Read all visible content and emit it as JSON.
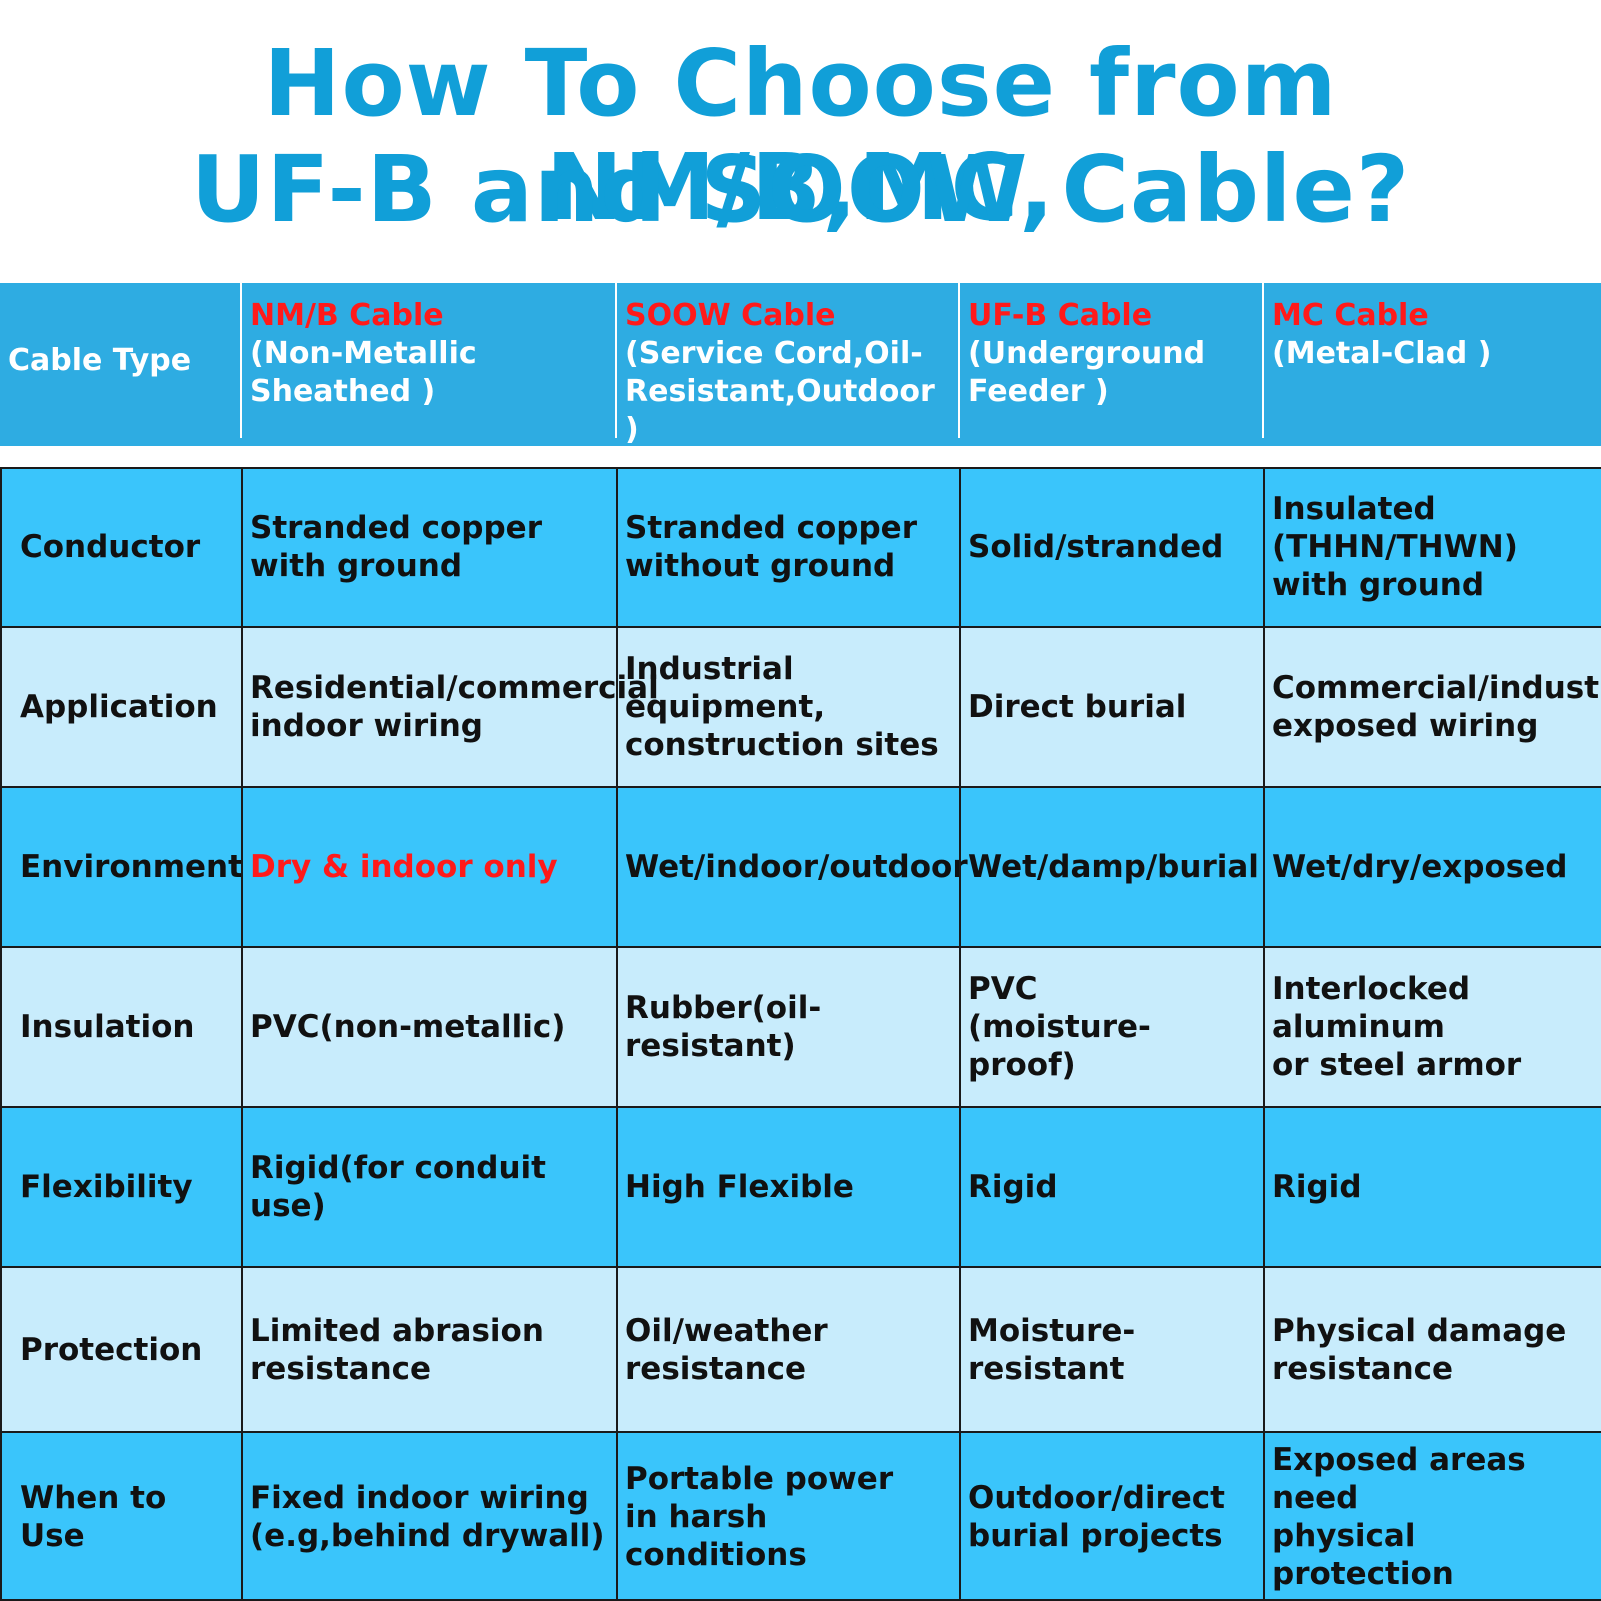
{
  "title": {
    "line1": "How To Choose from NM/B,MC,",
    "line2": "UF-B and SOOW Cable?"
  },
  "header": {
    "label": "Cable Type",
    "columns": [
      {
        "name": "NM/B Cable",
        "desc": "(Non-Metallic\nSheathed )"
      },
      {
        "name": "SOOW Cable",
        "desc": "(Service Cord,Oil-\nResistant,Outdoor )"
      },
      {
        "name": "UF-B Cable",
        "desc": "(Underground\nFeeder )"
      },
      {
        "name": "MC Cable",
        "desc": "(Metal-Clad )"
      }
    ]
  },
  "rows": [
    {
      "label": "Conductor",
      "cells": [
        "Stranded copper\nwith ground",
        "Stranded copper\nwithout ground",
        "Solid/stranded",
        "Insulated\n(THHN/THWN)\nwith ground"
      ]
    },
    {
      "label": "Application",
      "cells": [
        "Residential/commercial\nindoor wiring",
        "Industrial equipment,\nconstruction sites",
        "Direct burial",
        "Commercial/industrial\nexposed wiring"
      ]
    },
    {
      "label": "Environment",
      "cells": [
        "Dry & indoor only",
        "Wet/indoor/outdoor",
        "Wet/damp/burial",
        "Wet/dry/exposed"
      ]
    },
    {
      "label": "Insulation",
      "cells": [
        "PVC(non-metallic)",
        "Rubber(oil-resistant)",
        "PVC\n(moisture-proof)",
        "Interlocked\naluminum\nor steel armor"
      ]
    },
    {
      "label": "Flexibility",
      "cells": [
        "Rigid(for conduit use)",
        "High Flexible",
        "Rigid",
        "Rigid"
      ]
    },
    {
      "label": "Protection",
      "cells": [
        "Limited abrasion\nresistance",
        "Oil/weather\nresistance",
        "Moisture-resistant",
        "Physical damage\nresistance"
      ]
    },
    {
      "label": "When to Use",
      "cells": [
        "Fixed indoor wiring\n(e.g,behind drywall)",
        "Portable power\nin harsh conditions",
        "Outdoor/direct\nburial projects",
        "Exposed areas need\nphysical protection"
      ]
    }
  ],
  "colors": {
    "title": "#119fd8",
    "header_bg": "#2eace2",
    "row_dark": "#3ac5fb",
    "row_light": "#c8ecfc",
    "highlight": "#ff1a1a"
  }
}
